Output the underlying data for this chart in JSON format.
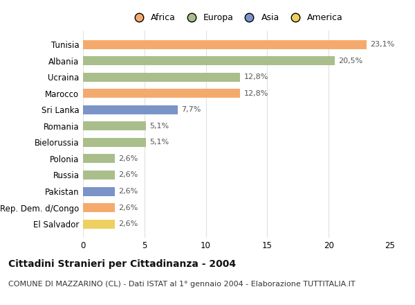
{
  "countries": [
    "Tunisia",
    "Albania",
    "Ucraina",
    "Marocco",
    "Sri Lanka",
    "Romania",
    "Bielorussia",
    "Polonia",
    "Russia",
    "Pakistan",
    "Rep. Dem. d/Congo",
    "El Salvador"
  ],
  "values": [
    23.1,
    20.5,
    12.8,
    12.8,
    7.7,
    5.1,
    5.1,
    2.6,
    2.6,
    2.6,
    2.6,
    2.6
  ],
  "labels": [
    "23,1%",
    "20,5%",
    "12,8%",
    "12,8%",
    "7,7%",
    "5,1%",
    "5,1%",
    "2,6%",
    "2,6%",
    "2,6%",
    "2,6%",
    "2,6%"
  ],
  "colors": [
    "#F5AA6D",
    "#AABE8C",
    "#AABE8C",
    "#F5AA6D",
    "#7A94C8",
    "#AABE8C",
    "#AABE8C",
    "#AABE8C",
    "#AABE8C",
    "#7A94C8",
    "#F5AA6D",
    "#EDD060"
  ],
  "legend_labels": [
    "Africa",
    "Europa",
    "Asia",
    "America"
  ],
  "legend_colors": [
    "#F5AA6D",
    "#AABE8C",
    "#7A94C8",
    "#EDD060"
  ],
  "xlim": [
    0,
    25
  ],
  "xticks": [
    0,
    5,
    10,
    15,
    20,
    25
  ],
  "title": "Cittadini Stranieri per Cittadinanza - 2004",
  "subtitle": "COMUNE DI MAZZARINO (CL) - Dati ISTAT al 1° gennaio 2004 - Elaborazione TUTTITALIA.IT",
  "title_fontsize": 10,
  "subtitle_fontsize": 8,
  "bar_height": 0.55,
  "grid_color": "#e0e0e0",
  "background_color": "#ffffff",
  "label_fontsize": 8,
  "ytick_fontsize": 8.5,
  "xtick_fontsize": 8.5,
  "legend_fontsize": 9
}
